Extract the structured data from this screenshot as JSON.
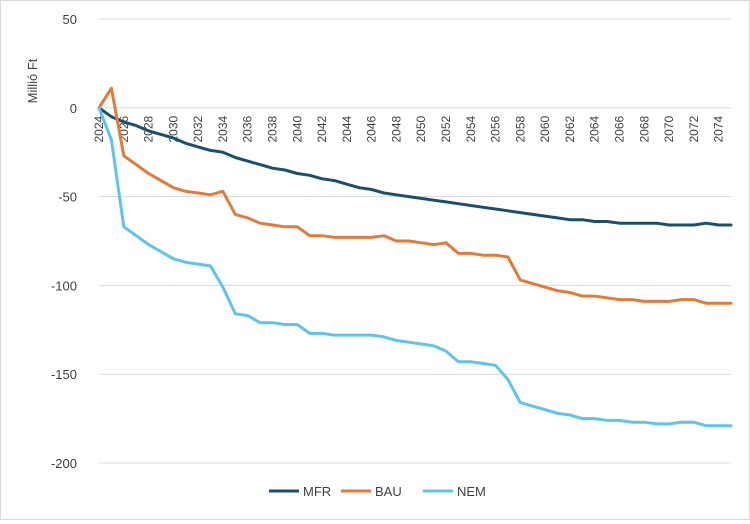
{
  "chart_data": {
    "type": "line",
    "title": "",
    "xlabel": "",
    "ylabel": "Millió Ft",
    "ylim": [
      -200,
      50
    ],
    "yticks": [
      50,
      0,
      -50,
      -100,
      -150,
      -200
    ],
    "xlim": [
      2024,
      2075
    ],
    "xtick_labels": [
      "2024",
      "2026",
      "2028",
      "2030",
      "2032",
      "2034",
      "2036",
      "2038",
      "2040",
      "2042",
      "2044",
      "2046",
      "2048",
      "2050",
      "2052",
      "2054",
      "2056",
      "2058",
      "2060",
      "2062",
      "2064",
      "2066",
      "2068",
      "2070",
      "2072",
      "2074"
    ],
    "grid": "horizontal",
    "legend_position": "bottom",
    "x": [
      2024,
      2025,
      2026,
      2027,
      2028,
      2029,
      2030,
      2031,
      2032,
      2033,
      2034,
      2035,
      2036,
      2037,
      2038,
      2039,
      2040,
      2041,
      2042,
      2043,
      2044,
      2045,
      2046,
      2047,
      2048,
      2049,
      2050,
      2051,
      2052,
      2053,
      2054,
      2055,
      2056,
      2057,
      2058,
      2059,
      2060,
      2061,
      2062,
      2063,
      2064,
      2065,
      2066,
      2067,
      2068,
      2069,
      2070,
      2071,
      2072,
      2073,
      2074,
      2075
    ],
    "series": [
      {
        "name": "MFR",
        "color": "#1b4f6b",
        "values": [
          0,
          -5,
          -8,
          -10,
          -13,
          -15,
          -17,
          -20,
          -22,
          -24,
          -25,
          -28,
          -30,
          -32,
          -34,
          -35,
          -37,
          -38,
          -40,
          -41,
          -43,
          -45,
          -46,
          -48,
          -49,
          -50,
          -51,
          -52,
          -53,
          -54,
          -55,
          -56,
          -57,
          -58,
          -59,
          -60,
          -61,
          -62,
          -63,
          -63,
          -64,
          -64,
          -65,
          -65,
          -65,
          -65,
          -66,
          -66,
          -66,
          -65,
          -66,
          -66
        ]
      },
      {
        "name": "BAU",
        "color": "#e07b39",
        "values": [
          0,
          11,
          -27,
          -32,
          -37,
          -41,
          -45,
          -47,
          -48,
          -49,
          -47,
          -60,
          -62,
          -65,
          -66,
          -67,
          -67,
          -72,
          -72,
          -73,
          -73,
          -73,
          -73,
          -72,
          -75,
          -75,
          -76,
          -77,
          -76,
          -82,
          -82,
          -83,
          -83,
          -84,
          -97,
          -99,
          -101,
          -103,
          -104,
          -106,
          -106,
          -107,
          -108,
          -108,
          -109,
          -109,
          -109,
          -108,
          -108,
          -110,
          -110,
          -110
        ]
      },
      {
        "name": "NEM",
        "color": "#5ec4ec",
        "values": [
          0,
          -18,
          -67,
          -72,
          -77,
          -81,
          -85,
          -87,
          -88,
          -89,
          -101,
          -116,
          -117,
          -121,
          -121,
          -122,
          -122,
          -127,
          -127,
          -128,
          -128,
          -128,
          -128,
          -129,
          -131,
          -132,
          -133,
          -134,
          -137,
          -143,
          -143,
          -144,
          -145,
          -153,
          -166,
          -168,
          -170,
          -172,
          -173,
          -175,
          -175,
          -176,
          -176,
          -177,
          -177,
          -178,
          -178,
          -177,
          -177,
          -179,
          -179,
          -179
        ]
      }
    ]
  }
}
